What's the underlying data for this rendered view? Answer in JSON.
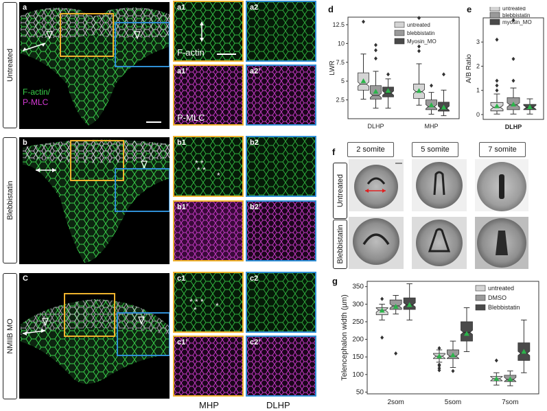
{
  "rows": {
    "untreated": "Untreated",
    "blebbistatin": "Blebbistatin",
    "nmiib": "NMIIB MO"
  },
  "labels": {
    "a": "a",
    "b": "b",
    "c": "C",
    "a1": "a1",
    "a2": "a2",
    "a1p": "a1’",
    "a2p": "a2’",
    "b1": "b1",
    "b2": "b2",
    "b1p": "b1’",
    "b2p": "b2’",
    "c1": "c1",
    "c2": "c2",
    "c1p": "c1’",
    "c2p": "c2’",
    "d": "d",
    "e": "e",
    "f": "f",
    "g": "g"
  },
  "stains": {
    "factin_slash": "F-actin/",
    "pmlc": "P-MLC",
    "factin": "F-actin",
    "pmlc_panel": "P-MLC"
  },
  "columns": {
    "mhp": "MHP",
    "dlhp": "DLHP"
  },
  "somite_headers": [
    "2 somite",
    "5 somite",
    "7 somite"
  ],
  "colors": {
    "green": "#39d14a",
    "magenta": "#d63ad6",
    "yellow_box": "#f0b32d",
    "blue_box": "#2f8fd6",
    "light_box": "#d4d4d4",
    "mid_box": "#9a9a9a",
    "dark_box": "#4a4a4a",
    "mean_marker": "#2bb34a"
  },
  "chart_data": [
    {
      "id": "d",
      "type": "box",
      "ylabel": "LWR",
      "categories": [
        "DLHP",
        "MHP"
      ],
      "yticks": [
        2.5,
        5.0,
        7.5,
        10.0,
        12.5
      ],
      "ylim": [
        0,
        13.5
      ],
      "legend": "top-right",
      "series": [
        {
          "name": "untreated",
          "color": "light",
          "boxes": [
            {
              "min": 2.6,
              "q1": 3.8,
              "med": 4.6,
              "q3": 6.1,
              "max": 8.6,
              "mean": 5.0,
              "outliers": [
                12.9
              ]
            },
            {
              "min": 1.8,
              "q1": 2.7,
              "med": 3.6,
              "q3": 4.6,
              "max": 7.3,
              "mean": 3.7,
              "outliers": [
                9.0,
                9.6,
                13.4
              ]
            }
          ]
        },
        {
          "name": "blebbistatin",
          "color": "mid",
          "boxes": [
            {
              "min": 1.4,
              "q1": 2.6,
              "med": 3.1,
              "q3": 4.4,
              "max": 6.3,
              "mean": 3.6,
              "outliers": [
                8.0,
                9.1,
                9.8
              ]
            },
            {
              "min": 0.6,
              "q1": 1.2,
              "med": 1.6,
              "q3": 2.5,
              "max": 3.5,
              "mean": 1.8,
              "outliers": [
                4.4
              ]
            }
          ]
        },
        {
          "name": "Myosin_MO",
          "color": "dark",
          "boxes": [
            {
              "min": 1.4,
              "q1": 2.9,
              "med": 3.4,
              "q3": 4.2,
              "max": 5.3,
              "mean": 3.7,
              "outliers": [
                5.9
              ]
            },
            {
              "min": 0.4,
              "q1": 1.0,
              "med": 1.4,
              "q3": 2.2,
              "max": 3.8,
              "mean": 1.5,
              "outliers": [
                5.9
              ]
            }
          ]
        }
      ]
    },
    {
      "id": "e",
      "type": "box",
      "ylabel": "A/B Ratio",
      "categories": [
        "DLHP"
      ],
      "yticks": [
        0,
        1,
        2,
        3
      ],
      "ylim": [
        -0.2,
        4.0
      ],
      "legend": "top",
      "series": [
        {
          "name": "untreated",
          "color": "light",
          "boxes": [
            {
              "min": 0.02,
              "q1": 0.15,
              "med": 0.3,
              "q3": 0.5,
              "max": 0.85,
              "mean": 0.35,
              "outliers": [
                1.0,
                1.2,
                1.4,
                3.1
              ]
            }
          ]
        },
        {
          "name": "blebbistatin",
          "color": "mid",
          "boxes": [
            {
              "min": 0.02,
              "q1": 0.2,
              "med": 0.4,
              "q3": 0.7,
              "max": 1.1,
              "mean": 0.42,
              "outliers": [
                1.4,
                2.3,
                3.9
              ]
            }
          ]
        },
        {
          "name": "myosin_MO",
          "color": "dark",
          "boxes": [
            {
              "min": 0.02,
              "q1": 0.2,
              "med": 0.3,
              "q3": 0.42,
              "max": 0.65,
              "mean": 0.31,
              "outliers": []
            }
          ]
        }
      ]
    },
    {
      "id": "g",
      "type": "box",
      "ylabel": "Telencephalon width (µm)",
      "categories": [
        "2som",
        "5som",
        "7som"
      ],
      "yticks": [
        50,
        100,
        150,
        200,
        250,
        300,
        350
      ],
      "ylim": [
        45,
        365
      ],
      "legend": "top-right",
      "series": [
        {
          "name": "untreated",
          "color": "light",
          "boxes": [
            {
              "min": 255,
              "q1": 270,
              "med": 283,
              "q3": 290,
              "max": 300,
              "mean": 282,
              "outliers": [
                205,
                315
              ]
            },
            {
              "min": 135,
              "q1": 145,
              "med": 152,
              "q3": 160,
              "max": 170,
              "mean": 152,
              "outliers": [
                112,
                118,
                125,
                128,
                175
              ]
            },
            {
              "min": 70,
              "q1": 82,
              "med": 88,
              "q3": 95,
              "max": 105,
              "mean": 88,
              "outliers": [
                140
              ]
            }
          ]
        },
        {
          "name": "DMSO",
          "color": "mid",
          "boxes": [
            {
              "min": 272,
              "q1": 285,
              "med": 295,
              "q3": 312,
              "max": 325,
              "mean": 293,
              "outliers": [
                160
              ]
            },
            {
              "min": 120,
              "q1": 145,
              "med": 152,
              "q3": 170,
              "max": 195,
              "mean": 155,
              "outliers": [
                110
              ]
            },
            {
              "min": 68,
              "q1": 80,
              "med": 86,
              "q3": 98,
              "max": 110,
              "mean": 87,
              "outliers": []
            }
          ]
        },
        {
          "name": "Blebbistatin",
          "color": "dark",
          "boxes": [
            {
              "min": 255,
              "q1": 285,
              "med": 298,
              "q3": 318,
              "max": 358,
              "mean": 298,
              "outliers": []
            },
            {
              "min": 165,
              "q1": 195,
              "med": 220,
              "q3": 250,
              "max": 290,
              "mean": 216,
              "outliers": []
            },
            {
              "min": 105,
              "q1": 140,
              "med": 160,
              "q3": 190,
              "max": 255,
              "mean": 165,
              "outliers": []
            }
          ]
        }
      ]
    }
  ]
}
